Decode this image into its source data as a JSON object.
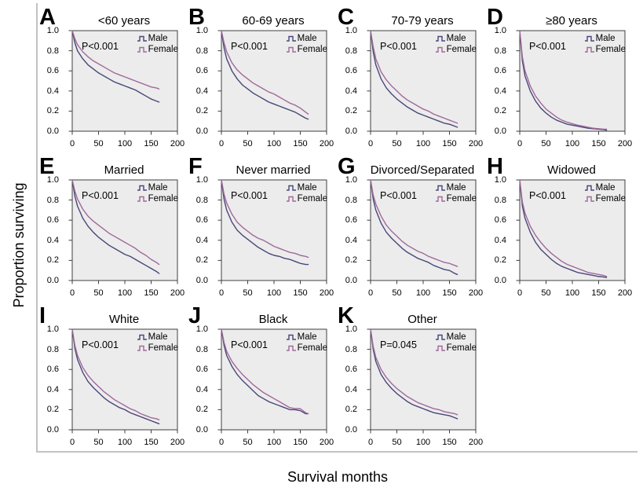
{
  "figure": {
    "y_axis_label": "Proportion surviving",
    "x_axis_label": "Survival months"
  },
  "legend": {
    "male_label": "Male",
    "female_label": "Female"
  },
  "colors": {
    "male": "#474778",
    "female": "#a0699a",
    "plot_bg": "#ececec",
    "plot_border": "#3f3f3f",
    "frame": "#c2c2c2"
  },
  "axes": {
    "y_ticks": [
      "1.0",
      "0.8",
      "0.6",
      "0.4",
      "0.2",
      "0.0"
    ],
    "x_ticks": [
      "0",
      "50",
      "100",
      "150",
      "200"
    ],
    "x_min": 0,
    "x_max": 200,
    "y_min": 0.0,
    "y_max": 1.0
  },
  "chart_data": {
    "type": "line",
    "description": "Kaplan-Meier survival curves, Male vs Female, 11 subgroup panels",
    "xlabel": "Survival months",
    "ylabel": "Proportion surviving",
    "x_months": [
      0,
      5,
      10,
      20,
      30,
      40,
      50,
      60,
      70,
      80,
      90,
      100,
      110,
      120,
      130,
      140,
      150,
      160,
      165
    ],
    "panels": [
      {
        "letter": "A",
        "title": "<60 years",
        "p_label": "P<0.001",
        "series": [
          {
            "name": "Male",
            "y": [
              1.0,
              0.88,
              0.8,
              0.72,
              0.66,
              0.62,
              0.58,
              0.55,
              0.52,
              0.49,
              0.47,
              0.45,
              0.43,
              0.41,
              0.38,
              0.35,
              0.32,
              0.3,
              0.29
            ]
          },
          {
            "name": "Female",
            "y": [
              1.0,
              0.92,
              0.86,
              0.79,
              0.74,
              0.7,
              0.67,
              0.64,
              0.61,
              0.58,
              0.56,
              0.54,
              0.52,
              0.5,
              0.48,
              0.46,
              0.44,
              0.43,
              0.42
            ]
          }
        ]
      },
      {
        "letter": "B",
        "title": "60-69 years",
        "p_label": "P<0.001",
        "series": [
          {
            "name": "Male",
            "y": [
              1.0,
              0.83,
              0.72,
              0.6,
              0.52,
              0.46,
              0.42,
              0.38,
              0.35,
              0.32,
              0.29,
              0.27,
              0.25,
              0.23,
              0.21,
              0.19,
              0.16,
              0.13,
              0.12
            ]
          },
          {
            "name": "Female",
            "y": [
              1.0,
              0.88,
              0.79,
              0.68,
              0.61,
              0.56,
              0.52,
              0.48,
              0.45,
              0.42,
              0.39,
              0.37,
              0.34,
              0.31,
              0.28,
              0.26,
              0.23,
              0.19,
              0.17
            ]
          }
        ]
      },
      {
        "letter": "C",
        "title": "70-79 years",
        "p_label": "P<0.001",
        "series": [
          {
            "name": "Male",
            "y": [
              1.0,
              0.79,
              0.66,
              0.52,
              0.43,
              0.37,
              0.32,
              0.28,
              0.24,
              0.21,
              0.18,
              0.16,
              0.14,
              0.12,
              0.1,
              0.08,
              0.07,
              0.05,
              0.04
            ]
          },
          {
            "name": "Female",
            "y": [
              1.0,
              0.84,
              0.72,
              0.59,
              0.51,
              0.45,
              0.4,
              0.35,
              0.31,
              0.28,
              0.25,
              0.22,
              0.2,
              0.17,
              0.15,
              0.13,
              0.11,
              0.09,
              0.08
            ]
          }
        ]
      },
      {
        "letter": "D",
        "title": "≥80 years",
        "p_label": "P<0.001",
        "series": [
          {
            "name": "Male",
            "y": [
              1.0,
              0.7,
              0.55,
              0.4,
              0.3,
              0.23,
              0.18,
              0.14,
              0.11,
              0.09,
              0.07,
              0.06,
              0.05,
              0.04,
              0.03,
              0.025,
              0.02,
              0.015,
              0.01
            ]
          },
          {
            "name": "Female",
            "y": [
              1.0,
              0.74,
              0.6,
              0.45,
              0.35,
              0.28,
              0.22,
              0.18,
              0.14,
              0.11,
              0.09,
              0.075,
              0.06,
              0.05,
              0.04,
              0.03,
              0.025,
              0.02,
              0.02
            ]
          }
        ]
      },
      {
        "letter": "E",
        "title": "Married",
        "p_label": "P<0.001",
        "series": [
          {
            "name": "Male",
            "y": [
              1.0,
              0.84,
              0.74,
              0.62,
              0.54,
              0.48,
              0.43,
              0.39,
              0.35,
              0.32,
              0.29,
              0.26,
              0.24,
              0.21,
              0.18,
              0.15,
              0.12,
              0.09,
              0.07
            ]
          },
          {
            "name": "Female",
            "y": [
              1.0,
              0.89,
              0.81,
              0.71,
              0.64,
              0.59,
              0.55,
              0.51,
              0.47,
              0.44,
              0.41,
              0.38,
              0.35,
              0.32,
              0.28,
              0.25,
              0.21,
              0.18,
              0.16
            ]
          }
        ]
      },
      {
        "letter": "F",
        "title": "Never married",
        "p_label": "P<0.001",
        "series": [
          {
            "name": "Male",
            "y": [
              1.0,
              0.81,
              0.7,
              0.58,
              0.5,
              0.45,
              0.41,
              0.37,
              0.33,
              0.3,
              0.27,
              0.25,
              0.24,
              0.22,
              0.21,
              0.19,
              0.17,
              0.16,
              0.16
            ]
          },
          {
            "name": "Female",
            "y": [
              1.0,
              0.86,
              0.77,
              0.66,
              0.58,
              0.53,
              0.49,
              0.45,
              0.42,
              0.4,
              0.37,
              0.34,
              0.32,
              0.3,
              0.28,
              0.27,
              0.25,
              0.24,
              0.23
            ]
          }
        ]
      },
      {
        "letter": "G",
        "title": "Divorced/Separated",
        "p_label": "P<0.001",
        "series": [
          {
            "name": "Male",
            "y": [
              1.0,
              0.81,
              0.7,
              0.57,
              0.48,
              0.42,
              0.37,
              0.32,
              0.28,
              0.25,
              0.22,
              0.2,
              0.18,
              0.15,
              0.13,
              0.11,
              0.1,
              0.07,
              0.06
            ]
          },
          {
            "name": "Female",
            "y": [
              1.0,
              0.85,
              0.76,
              0.64,
              0.55,
              0.49,
              0.44,
              0.39,
              0.35,
              0.32,
              0.29,
              0.27,
              0.24,
              0.22,
              0.2,
              0.18,
              0.17,
              0.15,
              0.14
            ]
          }
        ]
      },
      {
        "letter": "H",
        "title": "Widowed",
        "p_label": "P<0.001",
        "series": [
          {
            "name": "Male",
            "y": [
              1.0,
              0.74,
              0.62,
              0.48,
              0.38,
              0.31,
              0.26,
              0.21,
              0.17,
              0.14,
              0.12,
              0.1,
              0.08,
              0.07,
              0.06,
              0.05,
              0.04,
              0.035,
              0.03
            ]
          },
          {
            "name": "Female",
            "y": [
              1.0,
              0.78,
              0.67,
              0.54,
              0.45,
              0.38,
              0.32,
              0.27,
              0.23,
              0.19,
              0.16,
              0.14,
              0.12,
              0.1,
              0.08,
              0.07,
              0.06,
              0.05,
              0.04
            ]
          }
        ]
      },
      {
        "letter": "I",
        "title": "White",
        "p_label": "P<0.001",
        "series": [
          {
            "name": "Male",
            "y": [
              1.0,
              0.81,
              0.7,
              0.57,
              0.48,
              0.42,
              0.37,
              0.32,
              0.28,
              0.25,
              0.22,
              0.2,
              0.17,
              0.15,
              0.13,
              0.11,
              0.09,
              0.07,
              0.06
            ]
          },
          {
            "name": "Female",
            "y": [
              1.0,
              0.84,
              0.74,
              0.62,
              0.54,
              0.48,
              0.43,
              0.38,
              0.34,
              0.3,
              0.27,
              0.24,
              0.21,
              0.19,
              0.16,
              0.14,
              0.12,
              0.11,
              0.1
            ]
          }
        ]
      },
      {
        "letter": "J",
        "title": "Black",
        "p_label": "P<0.001",
        "series": [
          {
            "name": "Male",
            "y": [
              1.0,
              0.84,
              0.74,
              0.63,
              0.55,
              0.49,
              0.44,
              0.39,
              0.34,
              0.31,
              0.28,
              0.26,
              0.24,
              0.22,
              0.2,
              0.2,
              0.19,
              0.16,
              0.16
            ]
          },
          {
            "name": "Female",
            "y": [
              1.0,
              0.87,
              0.78,
              0.68,
              0.61,
              0.55,
              0.5,
              0.45,
              0.41,
              0.37,
              0.34,
              0.31,
              0.28,
              0.25,
              0.22,
              0.21,
              0.21,
              0.17,
              0.16
            ]
          }
        ]
      },
      {
        "letter": "K",
        "title": "Other",
        "p_label": "P=0.045",
        "series": [
          {
            "name": "Male",
            "y": [
              1.0,
              0.8,
              0.68,
              0.55,
              0.47,
              0.41,
              0.36,
              0.32,
              0.28,
              0.25,
              0.23,
              0.21,
              0.19,
              0.17,
              0.16,
              0.15,
              0.14,
              0.12,
              0.11
            ]
          },
          {
            "name": "Female",
            "y": [
              1.0,
              0.83,
              0.72,
              0.6,
              0.52,
              0.46,
              0.41,
              0.37,
              0.33,
              0.3,
              0.27,
              0.25,
              0.23,
              0.21,
              0.2,
              0.18,
              0.17,
              0.16,
              0.15
            ]
          }
        ]
      }
    ]
  }
}
